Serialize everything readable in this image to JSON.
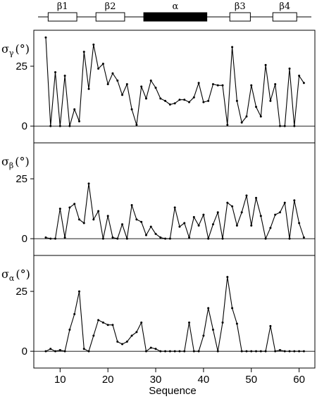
{
  "secondary_structure": [
    {
      "label": "β1",
      "start": 7.5,
      "end": 13.5,
      "filled": false
    },
    {
      "label": "β2",
      "start": 17.5,
      "end": 23.5,
      "filled": false
    },
    {
      "label": "α",
      "start": 27.5,
      "end": 40.7,
      "filled": true
    },
    {
      "label": "β3",
      "start": 45.5,
      "end": 49.8,
      "filled": false
    },
    {
      "label": "β4",
      "start": 54.5,
      "end": 59.5,
      "filled": false
    }
  ],
  "chart_data": [
    {
      "type": "line",
      "ylabel_symbol": "σ",
      "ylabel_sub": "γ",
      "ylabel_unit": "(°)",
      "yticks": [
        0,
        25
      ],
      "ylim": [
        -7,
        40
      ],
      "x": [
        7,
        8,
        9,
        10,
        11,
        12,
        13,
        14,
        15,
        16,
        17,
        18,
        19,
        20,
        21,
        22,
        23,
        24,
        25,
        26,
        27,
        28,
        29,
        30,
        31,
        32,
        33,
        34,
        35,
        36,
        37,
        38,
        39,
        40,
        41,
        42,
        43,
        44,
        45,
        46,
        47,
        48,
        49,
        50,
        51,
        52,
        53,
        54,
        55,
        56,
        57,
        58,
        59,
        60,
        61
      ],
      "values": [
        37,
        0,
        22.5,
        0,
        21,
        0,
        7,
        2,
        31,
        15.5,
        34,
        24,
        26,
        17.5,
        22,
        19,
        13,
        17.5,
        7,
        0.5,
        16.5,
        11.5,
        19,
        16,
        11.5,
        10.5,
        9,
        9.5,
        11,
        11,
        10,
        12,
        18,
        10,
        10.5,
        17.5,
        17,
        17,
        0.5,
        33,
        10.5,
        1.5,
        4,
        17,
        8,
        4,
        25.5,
        10.5,
        17.5,
        0,
        0,
        24,
        0,
        21,
        18
      ]
    },
    {
      "type": "line",
      "ylabel_symbol": "σ",
      "ylabel_sub": "β",
      "ylabel_unit": "(°)",
      "yticks": [
        0,
        25
      ],
      "ylim": [
        -7,
        40
      ],
      "x": [
        7,
        8,
        9,
        10,
        11,
        12,
        13,
        14,
        15,
        16,
        17,
        18,
        19,
        20,
        21,
        22,
        23,
        24,
        25,
        26,
        27,
        28,
        29,
        30,
        31,
        32,
        33,
        34,
        35,
        36,
        37,
        38,
        39,
        40,
        41,
        42,
        43,
        44,
        45,
        46,
        47,
        48,
        49,
        50,
        51,
        52,
        53,
        54,
        55,
        56,
        57,
        58,
        59,
        60,
        61
      ],
      "values": [
        0.5,
        0,
        0,
        12.5,
        0.5,
        13,
        14.5,
        8,
        6.5,
        23,
        8,
        11.5,
        0,
        9.5,
        0.5,
        0,
        6,
        0,
        14,
        8,
        7,
        1.5,
        5,
        2,
        0.5,
        0,
        0,
        13,
        5,
        6.5,
        0.5,
        9,
        5.5,
        10,
        0,
        6,
        11,
        0,
        15,
        13.5,
        5.5,
        11,
        18,
        5.5,
        17,
        9.5,
        0,
        4.5,
        10,
        11,
        15,
        0,
        16,
        6.5,
        0.5
      ]
    },
    {
      "type": "line",
      "ylabel_symbol": "σ",
      "ylabel_sub": "α",
      "ylabel_unit": "(°)",
      "yticks": [
        0,
        25
      ],
      "ylim": [
        -7,
        40
      ],
      "xlabel": "Sequence",
      "xticks": [
        10,
        20,
        30,
        40,
        50,
        60
      ],
      "xlim": [
        4.5,
        63.3
      ],
      "x": [
        7,
        8,
        9,
        10,
        11,
        12,
        13,
        14,
        15,
        16,
        17,
        18,
        19,
        20,
        21,
        22,
        23,
        24,
        25,
        26,
        27,
        28,
        29,
        30,
        31,
        32,
        33,
        34,
        35,
        36,
        37,
        38,
        39,
        40,
        41,
        42,
        43,
        44,
        45,
        46,
        47,
        48,
        49,
        50,
        51,
        52,
        53,
        54,
        55,
        56,
        57,
        58,
        59,
        60,
        61
      ],
      "values": [
        0,
        1,
        0,
        0.5,
        0,
        9,
        15.5,
        25,
        1,
        0,
        6.5,
        13,
        12,
        11,
        11,
        4,
        3,
        4,
        6.5,
        8,
        12,
        0,
        1.5,
        1,
        0,
        0,
        0,
        0,
        0,
        0,
        12,
        0,
        0,
        6.5,
        18,
        9,
        0,
        12,
        31,
        18,
        11.5,
        0,
        0,
        0,
        0,
        0,
        0,
        10.5,
        0,
        0.5,
        0,
        0,
        0,
        0,
        0
      ]
    }
  ]
}
